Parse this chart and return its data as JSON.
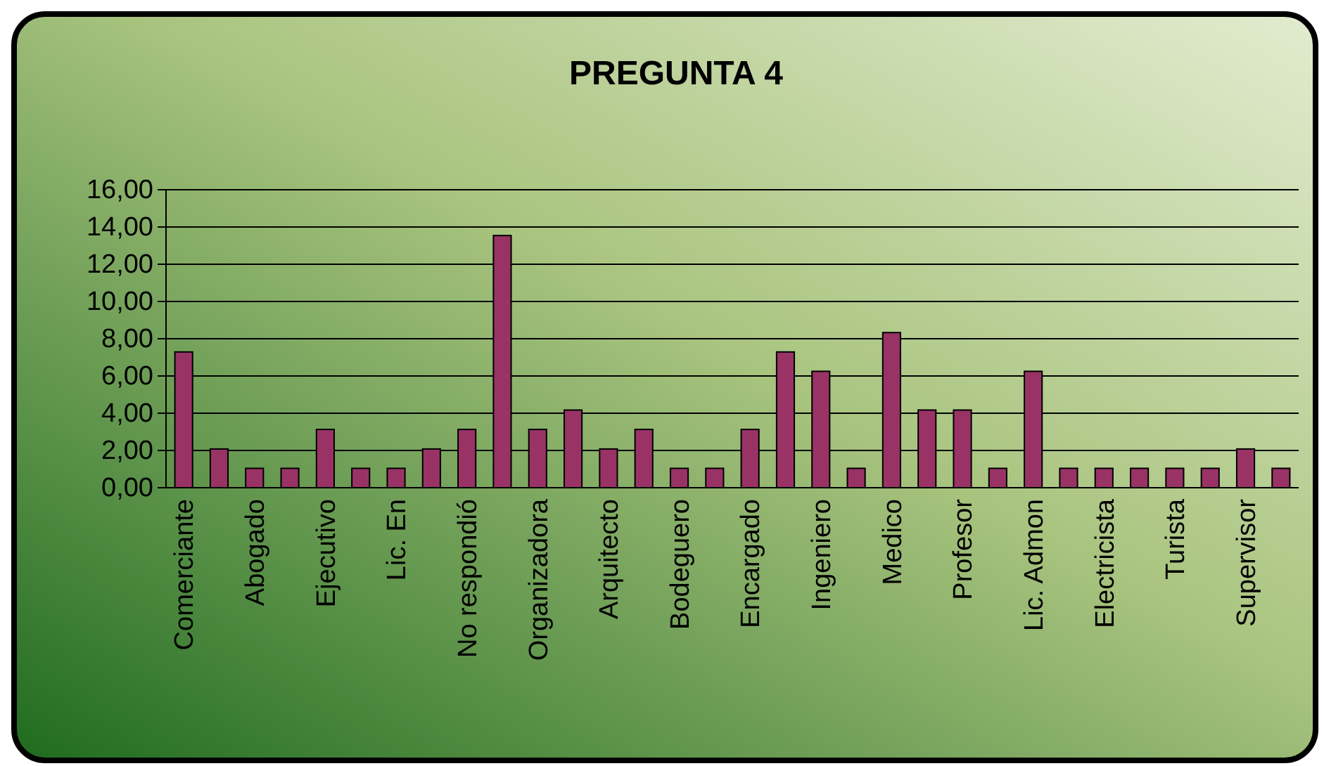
{
  "chart_data": {
    "type": "bar",
    "title": "PREGUNTA 4",
    "categories": [
      "Comerciante",
      null,
      "Abogado",
      null,
      "Ejecutivo",
      null,
      "Lic. En",
      null,
      "No respondió",
      null,
      "Organizadora",
      null,
      "Arquitecto",
      null,
      "Bodeguero",
      null,
      "Encargado",
      null,
      "Ingeniero",
      null,
      "Medico",
      null,
      "Profesor",
      null,
      "Lic. Admon",
      null,
      "Electricista",
      null,
      "Turista",
      null,
      "Supervisor",
      null
    ],
    "values": [
      7.29,
      2.08,
      1.04,
      1.04,
      3.13,
      1.04,
      1.04,
      2.08,
      3.13,
      13.54,
      3.13,
      4.17,
      2.08,
      3.13,
      1.04,
      1.04,
      3.13,
      7.29,
      6.25,
      1.04,
      8.33,
      4.17,
      4.17,
      1.04,
      6.25,
      1.04,
      1.04,
      1.04,
      1.04,
      1.04,
      2.08,
      1.04
    ],
    "color": "#993366",
    "ylim": [
      0,
      16
    ],
    "yticks": [
      {
        "value": 0,
        "label": "0,00"
      },
      {
        "value": 2,
        "label": "2,00"
      },
      {
        "value": 4,
        "label": "4,00"
      },
      {
        "value": 6,
        "label": "6,00"
      },
      {
        "value": 8,
        "label": "8,00"
      },
      {
        "value": 10,
        "label": "10,00"
      },
      {
        "value": 12,
        "label": "12,00"
      },
      {
        "value": 14,
        "label": "14,00"
      },
      {
        "value": 16,
        "label": "16,00"
      }
    ],
    "grid": "y"
  }
}
